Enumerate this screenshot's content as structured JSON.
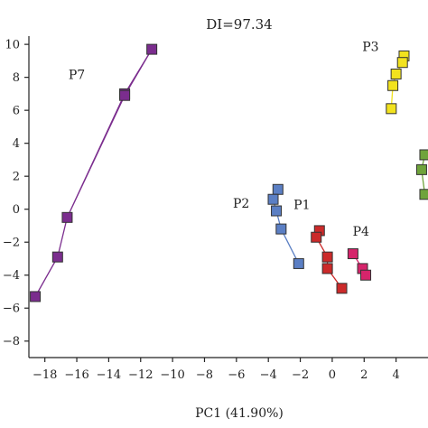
{
  "chart_data": {
    "type": "scatter",
    "title": "DI=97.34",
    "xlabel": "PC1 (41.90%)",
    "ylabel": "",
    "xlim": [
      -19,
      6
    ],
    "ylim": [
      -9,
      10.5
    ],
    "xticks": [
      -18,
      -16,
      -14,
      -12,
      -10,
      -8,
      -6,
      -4,
      -2,
      0,
      2,
      4
    ],
    "yticks": [
      -8,
      -6,
      -4,
      -2,
      0,
      2,
      4,
      6,
      8,
      10
    ],
    "grid": false,
    "legend": "none",
    "series": [
      {
        "name": "P7",
        "color": "#7b2d8e",
        "connected": true,
        "points": [
          [
            -11.3,
            9.7
          ],
          [
            -13,
            7
          ],
          [
            -16.6,
            -0.5
          ],
          [
            -17.2,
            -2.9
          ],
          [
            -18.6,
            -5.3
          ],
          [
            -17.2,
            -2.9
          ],
          [
            -16.6,
            -0.5
          ],
          [
            -13,
            6.9
          ],
          [
            -11.3,
            9.7
          ]
        ]
      },
      {
        "name": "P2",
        "color": "#5b7fc4",
        "connected": true,
        "points": [
          [
            -3.4,
            1.2
          ],
          [
            -3.7,
            0.6
          ],
          [
            -3.5,
            -0.1
          ],
          [
            -3.2,
            -1.2
          ],
          [
            -2.1,
            -3.3
          ]
        ]
      },
      {
        "name": "P1",
        "color": "#cc2a2a",
        "connected": true,
        "points": [
          [
            -0.8,
            -1.3
          ],
          [
            -1,
            -1.7
          ],
          [
            -0.3,
            -2.9
          ],
          [
            -0.3,
            -3.6
          ],
          [
            0.6,
            -4.8
          ]
        ]
      },
      {
        "name": "P4",
        "color": "#d6246b",
        "connected": true,
        "points": [
          [
            1.3,
            -2.7
          ],
          [
            1.9,
            -3.6
          ],
          [
            2.1,
            -4
          ]
        ]
      },
      {
        "name": "P3",
        "color": "#f2e21e",
        "connected": true,
        "points": [
          [
            4.5,
            9.3
          ],
          [
            4.4,
            8.9
          ],
          [
            4,
            8.2
          ],
          [
            3.8,
            7.5
          ],
          [
            3.7,
            6.1
          ]
        ]
      },
      {
        "name": "",
        "color": "#6fa33b",
        "connected": true,
        "points": [
          [
            5.8,
            3.3
          ],
          [
            5.6,
            2.4
          ],
          [
            5.8,
            0.9
          ]
        ]
      }
    ]
  }
}
